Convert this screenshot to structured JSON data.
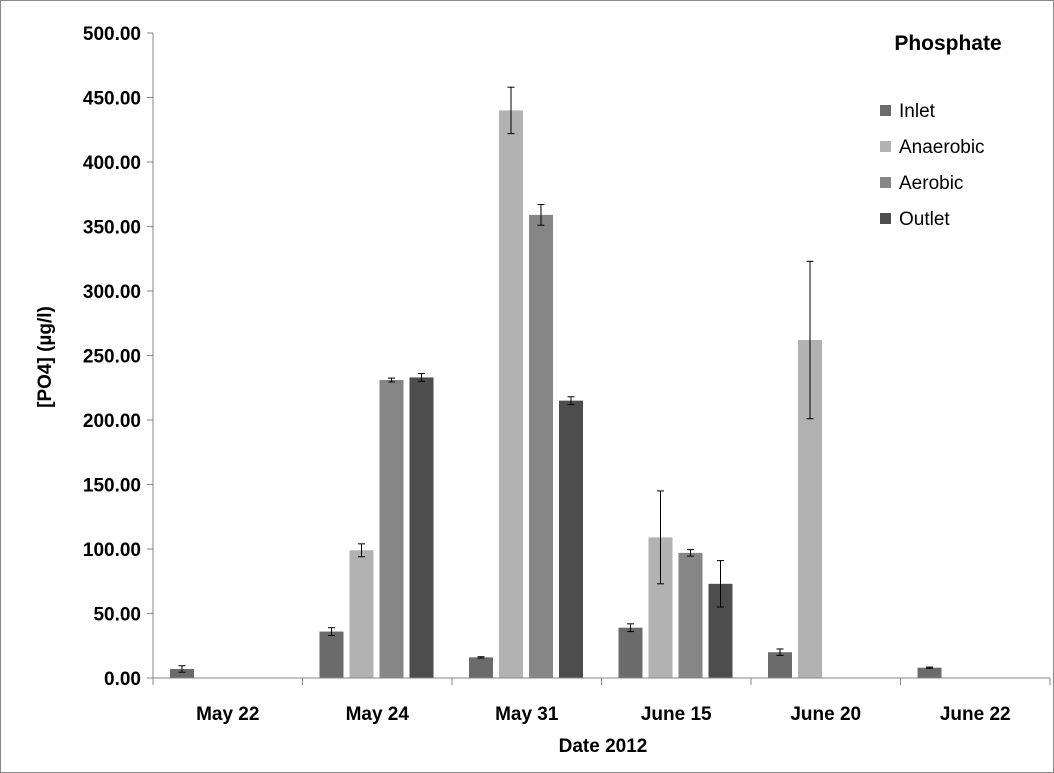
{
  "chart_data": {
    "type": "bar",
    "title": "Phosphate",
    "xlabel": "Date 2012",
    "ylabel": "[PO4] (µg/l)",
    "categories": [
      "May 22",
      "May 24",
      "May 31",
      "June 15",
      "June 20",
      "June 22"
    ],
    "ylim": [
      0,
      500
    ],
    "yticks": [
      "0.00",
      "50.00",
      "100.00",
      "150.00",
      "200.00",
      "250.00",
      "300.00",
      "350.00",
      "400.00",
      "450.00",
      "500.00"
    ],
    "grid": false,
    "legend_position": "top-right",
    "series": [
      {
        "name": "Inlet",
        "color": "#6b6b6b",
        "values": [
          7,
          36,
          16,
          39,
          20,
          8
        ],
        "errors": [
          2.5,
          3,
          0.5,
          3,
          2.5,
          0.5
        ]
      },
      {
        "name": "Anaerobic",
        "color": "#b2b2b2",
        "values": [
          null,
          99,
          440,
          109,
          262,
          null
        ],
        "errors": [
          null,
          5,
          18,
          36,
          61,
          null
        ]
      },
      {
        "name": "Aerobic",
        "color": "#868686",
        "values": [
          null,
          231,
          359,
          97,
          null,
          null
        ],
        "errors": [
          null,
          1.5,
          8,
          2.5,
          null,
          null
        ]
      },
      {
        "name": "Outlet",
        "color": "#4d4d4d",
        "values": [
          null,
          233,
          215,
          73,
          null,
          null
        ],
        "errors": [
          null,
          3,
          3,
          18,
          null,
          null
        ]
      }
    ]
  }
}
